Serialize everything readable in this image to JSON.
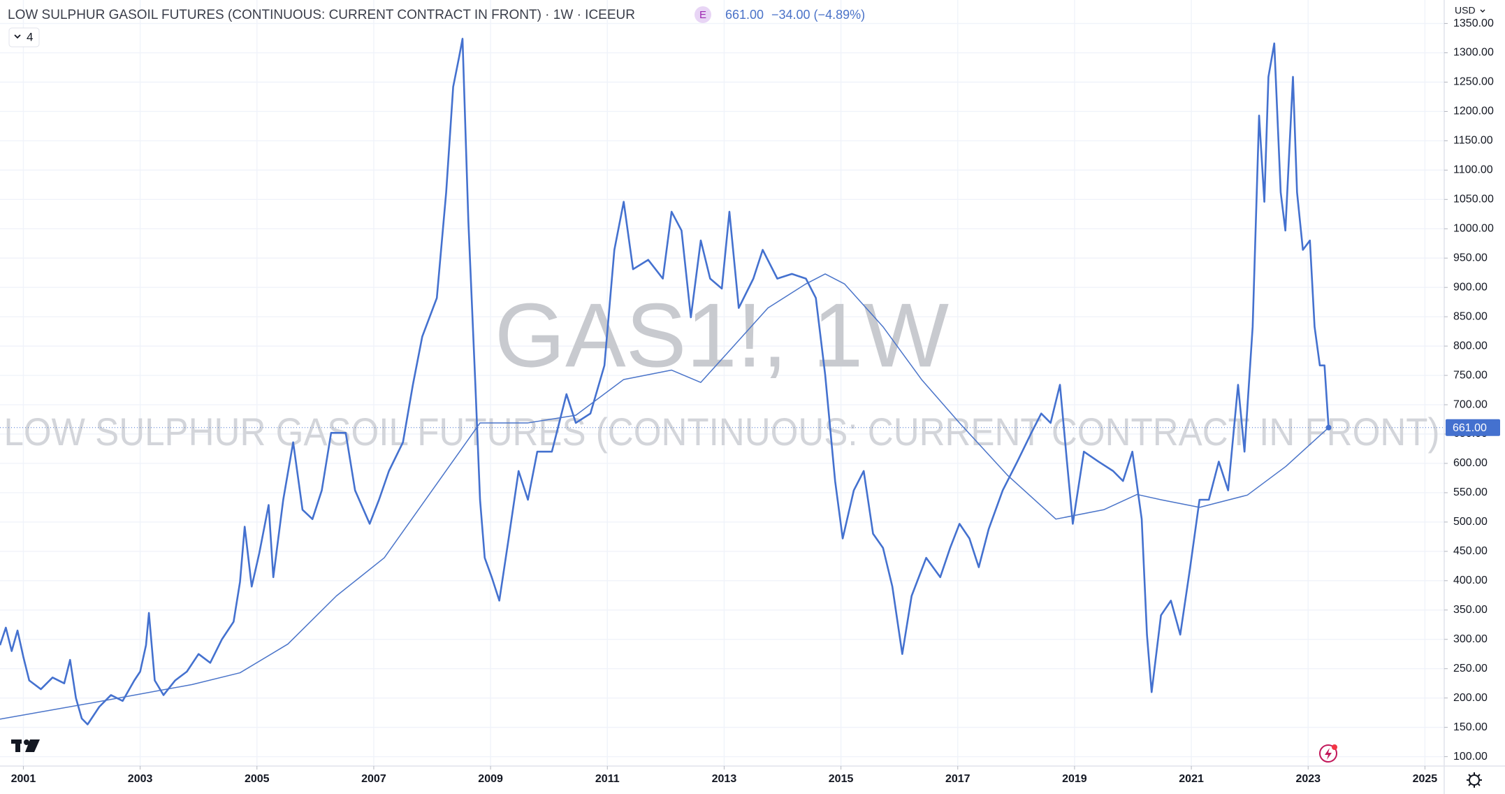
{
  "header": {
    "title": "LOW SULPHUR GASOIL FUTURES (CONTINUOUS: CURRENT CONTRACT IN FRONT) · 1W · ICEEUR",
    "exchange_badge": "E",
    "price": "661.00",
    "change": "−34.00 (−4.89%)",
    "indicators_count": "4",
    "currency": "USD"
  },
  "chart_data": {
    "type": "line",
    "watermark_symbol": "GAS1!, 1W",
    "watermark_description": "LOW SULPHUR GASOIL FUTURES (CONTINUOUS: CURRENT CONTRACT IN FRONT)",
    "xlim": [
      2000.6,
      2025.33
    ],
    "xticks": [
      2001,
      2003,
      2005,
      2007,
      2009,
      2011,
      2013,
      2015,
      2017,
      2019,
      2021,
      2023,
      2025
    ],
    "ylim": [
      84,
      1390
    ],
    "yticks": [
      {
        "value": 100,
        "label": "100.00"
      },
      {
        "value": 150,
        "label": "150.00"
      },
      {
        "value": 200,
        "label": "200.00"
      },
      {
        "value": 250,
        "label": "250.00"
      },
      {
        "value": 300,
        "label": "300.00"
      },
      {
        "value": 350,
        "label": "350.00"
      },
      {
        "value": 400,
        "label": "400.00"
      },
      {
        "value": 450,
        "label": "450.00"
      },
      {
        "value": 500,
        "label": "500.00"
      },
      {
        "value": 550,
        "label": "550.00"
      },
      {
        "value": 600,
        "label": "600.00"
      },
      {
        "value": 650,
        "label": "650.00"
      },
      {
        "value": 700,
        "label": "700.00"
      },
      {
        "value": 750,
        "label": "750.00"
      },
      {
        "value": 800,
        "label": "800.00"
      },
      {
        "value": 850,
        "label": "850.00"
      },
      {
        "value": 900,
        "label": "900.00"
      },
      {
        "value": 950,
        "label": "950.00"
      },
      {
        "value": 1000,
        "label": "1000.00"
      },
      {
        "value": 1050,
        "label": "1050.00"
      },
      {
        "value": 1100,
        "label": "1100.00"
      },
      {
        "value": 1150,
        "label": "1150.00"
      },
      {
        "value": 1200,
        "label": "1200.00"
      },
      {
        "value": 1250,
        "label": "1250.00"
      },
      {
        "value": 1300,
        "label": "1300.00"
      },
      {
        "value": 1350,
        "label": "1350.00"
      }
    ],
    "grid": true,
    "series": [
      {
        "color": "#4471cf",
        "width": 2.6,
        "x": [
          2000.6,
          2000.7,
          2000.8,
          2000.9,
          2001.0,
          2001.1,
          2001.3,
          2001.5,
          2001.7,
          2001.8,
          2001.9,
          2002.0,
          2002.1,
          2002.3,
          2002.5,
          2002.7,
          2002.9,
          2003.0,
          2003.1,
          2003.15,
          2003.25,
          2003.4,
          2003.6,
          2003.8,
          2004.0,
          2004.2,
          2004.4,
          2004.6,
          2004.71,
          2004.79,
          2004.91,
          2005.04,
          2005.2,
          2005.28,
          2005.45,
          2005.62,
          2005.78,
          2005.95,
          2006.11,
          2006.27,
          2006.52,
          2006.68,
          2006.93,
          2007.09,
          2007.26,
          2007.5,
          2007.67,
          2007.83,
          2008.08,
          2008.24,
          2008.36,
          2008.46,
          2008.52,
          2008.62,
          2008.74,
          2008.82,
          2008.9,
          2009.02,
          2009.15,
          2009.31,
          2009.48,
          2009.64,
          2009.8,
          2010.05,
          2010.3,
          2010.46,
          2010.71,
          2010.95,
          2011.12,
          2011.28,
          2011.44,
          2011.7,
          2011.95,
          2012.1,
          2012.27,
          2012.43,
          2012.6,
          2012.76,
          2012.96,
          2013.09,
          2013.25,
          2013.5,
          2013.66,
          2013.91,
          2014.16,
          2014.4,
          2014.57,
          2014.73,
          2014.9,
          2015.03,
          2015.22,
          2015.39,
          2015.55,
          2015.72,
          2015.88,
          2016.05,
          2016.21,
          2016.46,
          2016.7,
          2016.87,
          2017.03,
          2017.2,
          2017.36,
          2017.53,
          2017.77,
          2018.02,
          2018.26,
          2018.43,
          2018.59,
          2018.75,
          2018.87,
          2018.97,
          2019.16,
          2019.41,
          2019.66,
          2019.83,
          2019.99,
          2020.15,
          2020.24,
          2020.32,
          2020.48,
          2020.65,
          2020.81,
          2020.98,
          2021.14,
          2021.3,
          2021.47,
          2021.63,
          2021.8,
          2021.91,
          2022.05,
          2022.16,
          2022.25,
          2022.32,
          2022.42,
          2022.53,
          2022.61,
          2022.74,
          2022.81,
          2022.91,
          2023.03,
          2023.11,
          2023.2,
          2023.28,
          2023.35
        ],
        "values": [
          290,
          320,
          280,
          315,
          270,
          230,
          215,
          235,
          225,
          265,
          200,
          165,
          155,
          185,
          205,
          195,
          230,
          245,
          290,
          345,
          230,
          205,
          230,
          245,
          275,
          260,
          300,
          330,
          398,
          492,
          390,
          447,
          529,
          406,
          538,
          636,
          521,
          505,
          554,
          652,
          652,
          554,
          497,
          538,
          587,
          636,
          734,
          816,
          882,
          1062,
          1242,
          1292,
          1324,
          1013,
          734,
          538,
          439,
          406,
          366,
          472,
          587,
          538,
          620,
          620,
          718,
          669,
          685,
          767,
          964,
          1046,
          931,
          947,
          915,
          1029,
          997,
          849,
          980,
          915,
          898,
          1029,
          865,
          915,
          964,
          915,
          923,
          915,
          882,
          751,
          570,
          472,
          554,
          587,
          480,
          456,
          390,
          275,
          374,
          439,
          406,
          456,
          497,
          472,
          423,
          488,
          554,
          603,
          652,
          685,
          669,
          734,
          603,
          497,
          620,
          603,
          587,
          570,
          620,
          505,
          308,
          210,
          341,
          366,
          308,
          423,
          538,
          538,
          603,
          554,
          734,
          620,
          833,
          1193,
          1046,
          1259,
          1316,
          1062,
          997,
          1259,
          1062,
          964,
          980,
          833,
          767,
          767,
          661
        ]
      },
      {
        "color": "#4a74c9",
        "width": 1.5,
        "x": [
          2000.6,
          2002.25,
          2003.89,
          2004.71,
          2005.53,
          2006.36,
          2007.18,
          2008.0,
          2008.82,
          2009.64,
          2010.46,
          2011.28,
          2012.1,
          2012.6,
          2013.09,
          2013.75,
          2014.4,
          2014.73,
          2015.06,
          2015.72,
          2016.38,
          2017.03,
          2017.86,
          2018.68,
          2019.5,
          2020.07,
          2020.48,
          2021.14,
          2021.96,
          2022.62,
          2023.35
        ],
        "values": [
          164,
          193,
          223,
          243,
          292,
          374,
          439,
          554,
          669,
          669,
          682,
          743,
          759,
          738,
          792,
          865,
          906,
          923,
          906,
          833,
          743,
          669,
          579,
          505,
          521,
          547,
          538,
          525,
          546,
          595,
          661
        ]
      }
    ]
  }
}
